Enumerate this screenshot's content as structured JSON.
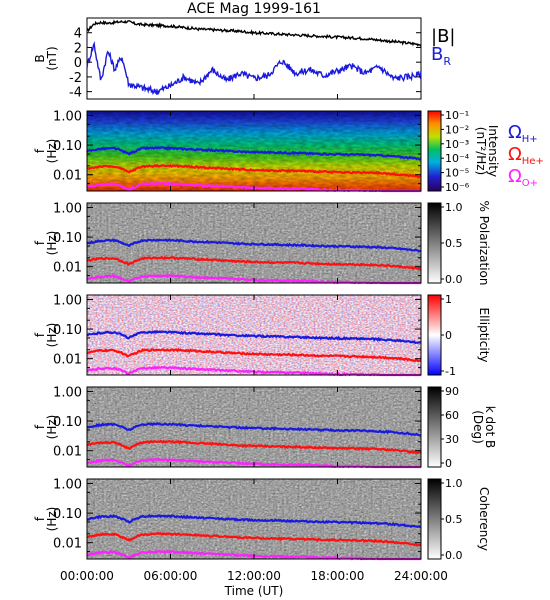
{
  "colors": {
    "black": "#000000",
    "blue": "#1a1adc",
    "red": "#ff1010",
    "magenta": "#ff20ff"
  },
  "chart_data": [
    {
      "type": "line",
      "title": "ACE Mag 1999-161",
      "ylabel_1": "B",
      "ylabel_2": "(nT)",
      "ylim": [
        -5,
        6
      ],
      "yticks": [
        "4",
        "2",
        "0",
        "-2",
        "-4"
      ],
      "ytick_values": [
        4,
        2,
        0,
        -2,
        -4
      ],
      "series": [
        {
          "name": "|B|",
          "color": "#000000",
          "x": [
            0,
            0.5,
            1,
            1.5,
            2,
            2.5,
            3,
            3.5,
            4,
            5,
            6,
            7,
            8,
            9,
            10,
            11,
            12,
            13,
            14,
            15,
            16,
            17,
            18,
            19,
            20,
            21,
            22,
            23,
            24
          ],
          "values": [
            4.2,
            5.2,
            5.4,
            5.3,
            5.4,
            5.5,
            5.5,
            5.2,
            5.1,
            5.0,
            4.9,
            4.7,
            4.5,
            4.4,
            4.3,
            4.2,
            4.0,
            3.9,
            3.8,
            3.7,
            3.6,
            3.5,
            3.4,
            3.3,
            3.2,
            3.0,
            2.8,
            2.6,
            2.4
          ]
        },
        {
          "name": "B",
          "subscript": "R",
          "color": "#1a1adc",
          "x": [
            0,
            0.5,
            1,
            1.5,
            2,
            2.5,
            3,
            3.5,
            4,
            5,
            6,
            7,
            8,
            9,
            10,
            11,
            12,
            13,
            14,
            15,
            16,
            17,
            18,
            19,
            20,
            21,
            22,
            23,
            24
          ],
          "values": [
            -0.5,
            2.5,
            -2.5,
            1.5,
            -1.0,
            0.8,
            -3.0,
            -3.2,
            -3.5,
            -4.0,
            -3.2,
            -2.0,
            -3.0,
            -1.0,
            -2.5,
            -1.5,
            -2.2,
            -1.8,
            0.2,
            -1.5,
            -1.0,
            -1.8,
            -1.2,
            -0.5,
            -1.5,
            -0.6,
            -2.2,
            -2.0,
            -1.6
          ]
        }
      ]
    },
    {
      "type": "heatmap",
      "ylabel_1": "f",
      "ylabel_2": "(Hz)",
      "yticks": [
        "1.00",
        "0.10",
        "0.01"
      ],
      "cbar_title_1": "Intensity",
      "cbar_title_2": "(nT²/Hz)",
      "cbar_ticks": [
        "10⁻¹",
        "10⁻²",
        "10⁻³",
        "10⁻⁴",
        "10⁻⁵",
        "10⁻⁶"
      ],
      "legend": [
        {
          "text": "Ω",
          "sub": "H+",
          "color": "#1a1adc"
        },
        {
          "text": "Ω",
          "sub": "He+",
          "color": "#ff1010"
        },
        {
          "text": "Ω",
          "sub": "O+",
          "color": "#ff20ff"
        }
      ]
    },
    {
      "type": "heatmap",
      "ylabel_1": "f",
      "ylabel_2": "(Hz)",
      "yticks": [
        "1.00",
        "0.10",
        "0.01"
      ],
      "cbar_title_1": "% Polarization",
      "cbar_title_2": "",
      "cbar_ticks": [
        "1.0",
        "0.5",
        "0.0"
      ]
    },
    {
      "type": "heatmap",
      "ylabel_1": "f",
      "ylabel_2": "(Hz)",
      "yticks": [
        "1.00",
        "0.10",
        "0.01"
      ],
      "cbar_title_1": "Ellipticity",
      "cbar_title_2": "",
      "cbar_ticks": [
        "1",
        "0",
        "-1"
      ]
    },
    {
      "type": "heatmap",
      "ylabel_1": "f",
      "ylabel_2": "(Hz)",
      "yticks": [
        "1.00",
        "0.10",
        "0.01"
      ],
      "cbar_title_1": "k dot B",
      "cbar_title_2": "(Deg)",
      "cbar_ticks": [
        "90",
        "60",
        "30",
        "0"
      ]
    },
    {
      "type": "heatmap",
      "ylabel_1": "f",
      "ylabel_2": "(Hz)",
      "yticks": [
        "1.00",
        "0.10",
        "0.01"
      ],
      "cbar_title_1": "Coherency",
      "cbar_title_2": "",
      "cbar_ticks": [
        "1.0",
        "0.5",
        "0.0"
      ],
      "xlabel": "Time (UT)",
      "xticks": [
        "00:00:00",
        "06:00:00",
        "12:00:00",
        "18:00:00",
        "24:00:00"
      ],
      "xtick_values": [
        0,
        6,
        12,
        18,
        24
      ]
    }
  ],
  "gyrofrequency_lines": {
    "x": [
      0,
      1,
      2,
      3,
      4,
      5,
      6,
      7,
      8,
      9,
      10,
      11,
      12,
      13,
      14,
      15,
      16,
      17,
      18,
      19,
      20,
      21,
      22,
      23,
      24
    ],
    "H": [
      0.062,
      0.075,
      0.078,
      0.05,
      0.078,
      0.08,
      0.078,
      0.074,
      0.07,
      0.067,
      0.063,
      0.06,
      0.058,
      0.057,
      0.055,
      0.054,
      0.052,
      0.05,
      0.049,
      0.048,
      0.047,
      0.045,
      0.042,
      0.038,
      0.034
    ],
    "He": [
      0.016,
      0.019,
      0.019,
      0.012,
      0.019,
      0.02,
      0.02,
      0.019,
      0.018,
      0.017,
      0.016,
      0.015,
      0.0145,
      0.014,
      0.0137,
      0.0135,
      0.013,
      0.0125,
      0.0122,
      0.012,
      0.0117,
      0.0113,
      0.0105,
      0.0095,
      0.0085
    ],
    "O": [
      0.0039,
      0.0047,
      0.0048,
      0.0031,
      0.0048,
      0.005,
      0.0049,
      0.0047,
      0.0044,
      0.0042,
      0.004,
      0.0038,
      0.0036,
      0.0035,
      0.0034,
      0.0034,
      0.0033,
      0.0031,
      0.003,
      0.003,
      0.0029,
      0.0028,
      0.0026,
      0.0024,
      0.0021
    ]
  }
}
